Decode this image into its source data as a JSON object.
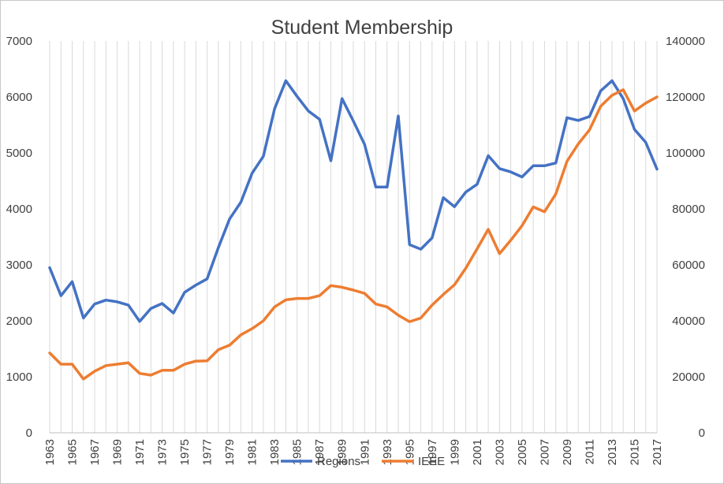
{
  "chart_data": {
    "type": "line",
    "title": "Student Membership",
    "xlabel": "",
    "ylabel": "",
    "x": [
      1963,
      1964,
      1965,
      1966,
      1967,
      1968,
      1969,
      1970,
      1971,
      1972,
      1973,
      1974,
      1975,
      1976,
      1977,
      1978,
      1979,
      1980,
      1981,
      1982,
      1983,
      1984,
      1985,
      1986,
      1987,
      1988,
      1989,
      1990,
      1991,
      1992,
      1993,
      1994,
      1995,
      1996,
      1997,
      1998,
      1999,
      2000,
      2001,
      2002,
      2003,
      2004,
      2005,
      2006,
      2007,
      2008,
      2009,
      2010,
      2011,
      2012,
      2013,
      2014,
      2015,
      2016,
      2017
    ],
    "x_tick_labels": [
      "1963",
      "1965",
      "1967",
      "1969",
      "1971",
      "1973",
      "1975",
      "1977",
      "1979",
      "1981",
      "1983",
      "1985",
      "1987",
      "1989",
      "1991",
      "1993",
      "1995",
      "1997",
      "1999",
      "2001",
      "2003",
      "2005",
      "2007",
      "2009",
      "2011",
      "2013",
      "2015",
      "2017"
    ],
    "ylim_left": [
      0,
      7000
    ],
    "yticks_left": [
      "0",
      "1000",
      "2000",
      "3000",
      "4000",
      "5000",
      "6000",
      "7000"
    ],
    "ylim_right": [
      0,
      140000
    ],
    "yticks_right": [
      "0",
      "20000",
      "40000",
      "60000",
      "80000",
      "100000",
      "120000",
      "140000"
    ],
    "grid": "vertical",
    "legend_position": "bottom",
    "series": [
      {
        "name": "Regions",
        "axis": "left",
        "color": "#4472c4",
        "values": [
          2950,
          2450,
          2700,
          2050,
          2300,
          2370,
          2340,
          2280,
          1990,
          2220,
          2310,
          2140,
          2510,
          2640,
          2750,
          3310,
          3820,
          4120,
          4640,
          4940,
          5790,
          6290,
          6010,
          5750,
          5600,
          4860,
          5970,
          5570,
          5150,
          4390,
          4390,
          5660,
          3360,
          3280,
          3480,
          4200,
          4040,
          4300,
          4440,
          4950,
          4720,
          4660,
          4570,
          4770,
          4770,
          4820,
          5630,
          5580,
          5650,
          6110,
          6290,
          5970,
          5420,
          5190,
          4710
        ]
      },
      {
        "name": "IEEE",
        "axis": "right",
        "color": "#ed7d31",
        "values": [
          28500,
          24500,
          24500,
          19200,
          22000,
          24000,
          24500,
          25000,
          21200,
          20600,
          22300,
          22300,
          24500,
          25600,
          25700,
          29700,
          31300,
          35000,
          37200,
          40000,
          45000,
          47500,
          48000,
          48000,
          49000,
          52600,
          52000,
          51000,
          49800,
          46000,
          45000,
          42000,
          39700,
          41000,
          45600,
          49400,
          52900,
          58800,
          65700,
          72700,
          64000,
          68800,
          74000,
          80700,
          79000,
          85300,
          97000,
          103200,
          108200,
          116700,
          120600,
          122600,
          115000,
          117800,
          120000
        ]
      }
    ],
    "legend": [
      {
        "name": "Regions",
        "color": "#4472c4"
      },
      {
        "name": "IEEE",
        "color": "#ed7d31"
      }
    ]
  }
}
